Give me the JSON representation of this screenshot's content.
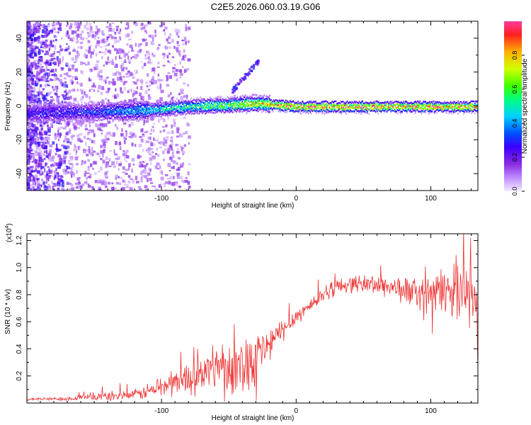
{
  "title": "C2E5.2026.060.03.19.G06",
  "colors": {
    "snr_line": "#ee3333",
    "colorbar": [
      "#f0e6ff",
      "#c08cff",
      "#8a2be2",
      "#3c00ff",
      "#0050ff",
      "#00d0ff",
      "#00ff80",
      "#40ff00",
      "#d0ff00",
      "#ffb000",
      "#ff2020",
      "#ff3b9a"
    ]
  },
  "chart_data": [
    {
      "type": "heatmap",
      "title": "C2E5.2026.060.03.19.G06",
      "xlabel": "Height of straight line (km)",
      "ylabel": "Frequency (Hz)",
      "xlim": [
        -200,
        135
      ],
      "ylim": [
        -50,
        50
      ],
      "xticks": [
        -100,
        0,
        100
      ],
      "xtick_labels": [
        "-100",
        "0",
        "100"
      ],
      "yticks": [
        -40,
        -20,
        0,
        20,
        40
      ],
      "ytick_labels": [
        "-40",
        "-20",
        "0",
        "20",
        "40"
      ],
      "colorbar": {
        "label": "Normalized spectral amplitude",
        "range": [
          0.0,
          1.0
        ],
        "ticks": [
          0.0,
          0.2,
          0.4,
          0.6,
          0.8
        ],
        "tick_labels": [
          "0.0",
          "0.2",
          "0.4",
          "0.6",
          "0.8"
        ]
      },
      "ridge": {
        "description_points_x": [
          -200,
          -150,
          -110,
          -80,
          -50,
          -30,
          0,
          50,
          100,
          135
        ],
        "center_freq": [
          -4,
          -3,
          -2,
          0,
          1,
          2,
          0,
          0,
          0,
          0
        ],
        "peak_amplitude": [
          0.3,
          0.35,
          0.5,
          0.6,
          0.7,
          0.85,
          0.95,
          0.95,
          0.95,
          0.9
        ]
      }
    },
    {
      "type": "line",
      "xlabel": "Height of straight line (km)",
      "ylabel": "SNR (10 * v/v)",
      "scale_label": "(x10",
      "scale_exp": "4",
      "scale_close": ")",
      "xlim": [
        -200,
        135
      ],
      "ylim": [
        0,
        1.25
      ],
      "xticks": [
        -100,
        0,
        100
      ],
      "xtick_labels": [
        "-100",
        "0",
        "100"
      ],
      "yticks": [
        0.2,
        0.4,
        0.6,
        0.8,
        1.0,
        1.2
      ],
      "ytick_labels": [
        "0.2",
        "0.4",
        "0.6",
        "0.8",
        "1.0",
        "1.2"
      ],
      "series": [
        {
          "name": "SNR",
          "x": [
            -200,
            -180,
            -160,
            -140,
            -120,
            -105,
            -95,
            -85,
            -75,
            -65,
            -55,
            -45,
            -35,
            -25,
            -18,
            -12,
            -6,
            0,
            8,
            15,
            22,
            30,
            40,
            55,
            70,
            85,
            100,
            115,
            125,
            135
          ],
          "y": [
            0.03,
            0.03,
            0.04,
            0.05,
            0.06,
            0.1,
            0.14,
            0.17,
            0.2,
            0.24,
            0.3,
            0.25,
            0.32,
            0.38,
            0.45,
            0.52,
            0.58,
            0.64,
            0.7,
            0.76,
            0.82,
            0.86,
            0.88,
            0.88,
            0.86,
            0.82,
            0.8,
            0.84,
            0.88,
            0.7
          ],
          "noise": [
            0.01,
            0.01,
            0.02,
            0.03,
            0.03,
            0.06,
            0.08,
            0.09,
            0.1,
            0.12,
            0.14,
            0.16,
            0.2,
            0.14,
            0.1,
            0.08,
            0.06,
            0.05,
            0.05,
            0.05,
            0.05,
            0.05,
            0.05,
            0.06,
            0.07,
            0.09,
            0.12,
            0.16,
            0.2,
            0.22
          ]
        }
      ]
    }
  ]
}
